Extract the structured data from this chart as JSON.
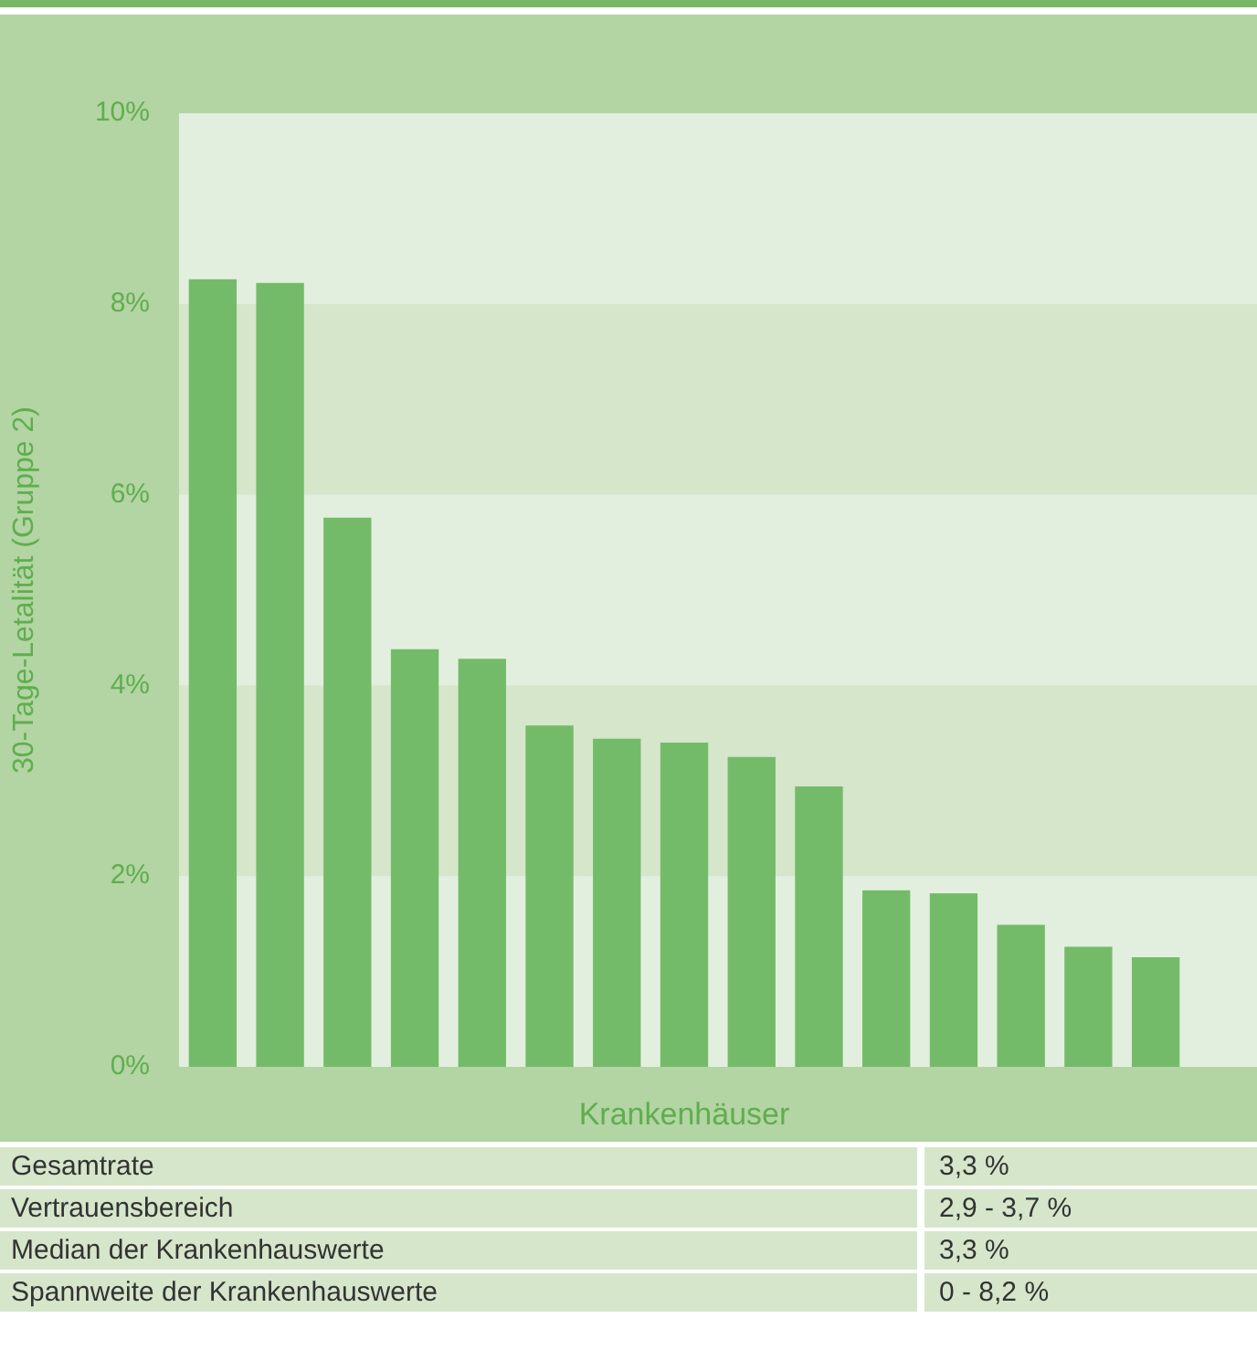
{
  "chart_data": {
    "type": "bar",
    "ylabel": "30-Tage-Letalität (Gruppe 2)",
    "xlabel": "Krankenhäuser",
    "categories": [
      null,
      null,
      null,
      null,
      null,
      null,
      null,
      null,
      null,
      null,
      null,
      null,
      null,
      null,
      null
    ],
    "values": [
      8.26,
      8.22,
      5.76,
      4.38,
      4.28,
      3.58,
      3.44,
      3.4,
      3.25,
      2.94,
      1.85,
      1.82,
      1.49,
      1.26,
      1.15
    ],
    "color": "#74bb69",
    "ylim": [
      0,
      10
    ],
    "yticks": [
      {
        "value": 0,
        "label": "0%"
      },
      {
        "value": 2,
        "label": "2%"
      },
      {
        "value": 4,
        "label": "4%"
      },
      {
        "value": 6,
        "label": "6%"
      },
      {
        "value": 8,
        "label": "8%"
      },
      {
        "value": 10,
        "label": "10%"
      }
    ],
    "tick_labels": "y",
    "annotations": [
      "Gesamtrate",
      "3,3 %",
      "Vertrauensbereich",
      "2,9 - 3,7 %",
      "Median der Krankenhauswerte",
      "3,3 %",
      "Spannweite der Krankenhauswerte",
      "0 - 8,2 %"
    ]
  }
}
